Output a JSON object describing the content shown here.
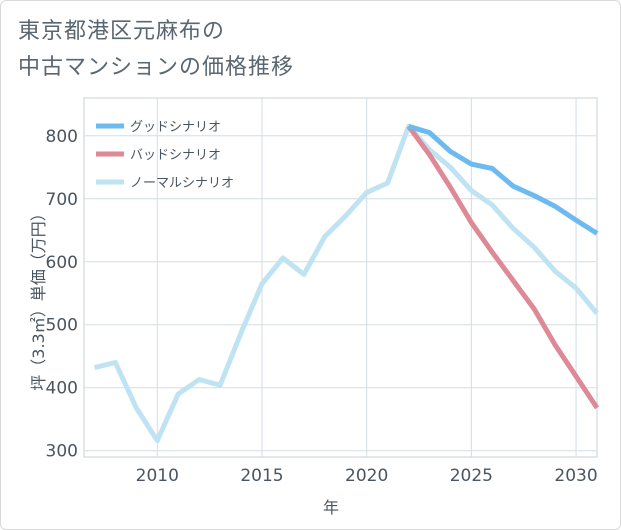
{
  "title_lines": [
    "東京都港区元麻布の",
    "中古マンションの価格推移"
  ],
  "chart_data": {
    "type": "line",
    "title": "東京都港区元麻布の中古マンションの価格推移",
    "xlabel": "年",
    "ylabel": "坪（3.3㎡）単価（万円）",
    "xlim": [
      2006.5,
      2031
    ],
    "ylim": [
      290,
      860
    ],
    "x_ticks": [
      2010,
      2015,
      2020,
      2025,
      2030
    ],
    "y_ticks": [
      300,
      400,
      500,
      600,
      700,
      800
    ],
    "legend_position": "top-left",
    "series": [
      {
        "name": "グッドシナリオ",
        "color": "#6dbaf0",
        "x": [
          2022,
          2023,
          2024,
          2025,
          2026,
          2027,
          2028,
          2029,
          2030,
          2031
        ],
        "values": [
          815,
          805,
          775,
          755,
          748,
          720,
          705,
          688,
          666,
          645
        ]
      },
      {
        "name": "バッドシナリオ",
        "color": "#de8a96",
        "x": [
          2022,
          2023,
          2024,
          2025,
          2026,
          2027,
          2028,
          2029,
          2030,
          2031
        ],
        "values": [
          815,
          770,
          718,
          662,
          615,
          570,
          525,
          468,
          418,
          368
        ]
      },
      {
        "name": "ノーマルシナリオ",
        "color": "#bfe3f2",
        "x": [
          2007,
          2008,
          2009,
          2010,
          2011,
          2012,
          2013,
          2014,
          2015,
          2016,
          2017,
          2018,
          2019,
          2020,
          2021,
          2022,
          2023,
          2024,
          2025,
          2026,
          2027,
          2028,
          2029,
          2030,
          2031
        ],
        "values": [
          432,
          440,
          368,
          316,
          390,
          413,
          404,
          487,
          565,
          606,
          580,
          640,
          673,
          710,
          725,
          815,
          778,
          750,
          713,
          690,
          653,
          623,
          585,
          558,
          518
        ]
      }
    ]
  }
}
